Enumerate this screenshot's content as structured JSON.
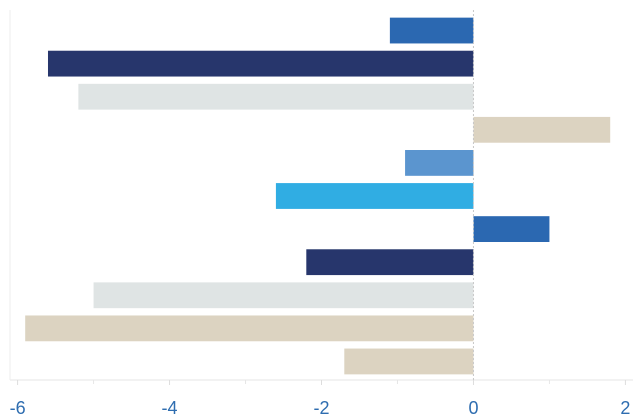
{
  "chart_data": {
    "type": "bar",
    "orientation": "horizontal",
    "title": "",
    "xlabel": "",
    "ylabel": "",
    "xlim": [
      -6.1,
      2.1
    ],
    "grid": false,
    "zero_line": "dashed",
    "x_ticks": [
      {
        "value": -6,
        "label": "-6"
      },
      {
        "value": -4,
        "label": "-4"
      },
      {
        "value": -2,
        "label": "-2"
      },
      {
        "value": 0,
        "label": "0"
      },
      {
        "value": 2,
        "label": "2"
      }
    ],
    "bars": [
      {
        "value": -1.1,
        "color": "#2b68b1"
      },
      {
        "value": -5.6,
        "color": "#27366c"
      },
      {
        "value": -5.2,
        "color": "#dfe4e4"
      },
      {
        "value": 1.8,
        "color": "#dcd3c1"
      },
      {
        "value": -0.9,
        "color": "#5b95cf"
      },
      {
        "value": -2.6,
        "color": "#30ade3"
      },
      {
        "value": 1.0,
        "color": "#2b68b1"
      },
      {
        "value": -2.2,
        "color": "#27366c"
      },
      {
        "value": -5.0,
        "color": "#dfe4e4"
      },
      {
        "value": -5.9,
        "color": "#dcd3c1"
      },
      {
        "value": -1.7,
        "color": "#dcd3c1"
      }
    ]
  }
}
